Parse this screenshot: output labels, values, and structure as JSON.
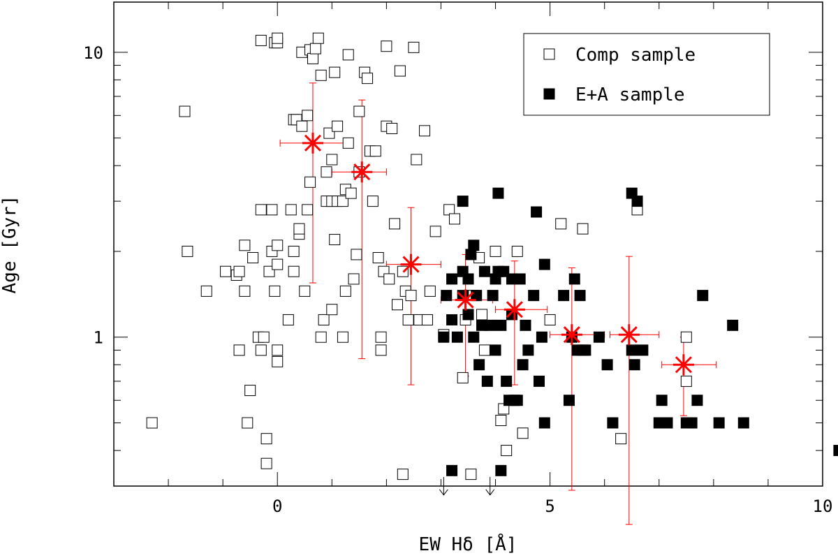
{
  "chart_data": {
    "type": "scatter",
    "xlabel": "EW Hδ [Å]",
    "ylabel": "Age [Gyr]",
    "xlim": [
      -3,
      10
    ],
    "ylim": [
      0.3,
      15
    ],
    "y_scale": "log",
    "x_ticks": [
      0,
      5,
      10
    ],
    "x_tick_labels": [
      "0",
      "5",
      "10"
    ],
    "y_ticks": [
      1,
      10
    ],
    "y_tick_labels": [
      "1",
      "10"
    ],
    "grid": false,
    "legend_position": "top-right",
    "series": [
      {
        "name": "Comp sample",
        "marker": "open-square",
        "color": "#000000",
        "points": [
          [
            -2.3,
            0.5
          ],
          [
            -1.7,
            6.2
          ],
          [
            -1.65,
            2.0
          ],
          [
            -1.3,
            1.45
          ],
          [
            -0.95,
            1.7
          ],
          [
            -0.75,
            1.65
          ],
          [
            -0.7,
            1.7
          ],
          [
            -0.7,
            0.9
          ],
          [
            -0.6,
            2.1
          ],
          [
            -0.6,
            1.45
          ],
          [
            -0.55,
            0.5
          ],
          [
            -0.5,
            0.65
          ],
          [
            -0.45,
            1.9
          ],
          [
            -0.35,
            1.0
          ],
          [
            -0.3,
            0.9
          ],
          [
            -0.3,
            2.8
          ],
          [
            -0.3,
            11.0
          ],
          [
            -0.25,
            1.0
          ],
          [
            -0.2,
            0.44
          ],
          [
            -0.2,
            0.36
          ],
          [
            -0.15,
            1.7
          ],
          [
            -0.1,
            2.0
          ],
          [
            -0.1,
            2.8
          ],
          [
            -0.05,
            1.45
          ],
          [
            -0.05,
            10.8
          ],
          [
            0.0,
            1.8
          ],
          [
            0.0,
            2.1
          ],
          [
            0.0,
            10.8
          ],
          [
            0.0,
            11.2
          ],
          [
            0.0,
            0.9
          ],
          [
            0.0,
            0.82
          ],
          [
            0.2,
            1.15
          ],
          [
            0.25,
            2.8
          ],
          [
            0.3,
            1.7
          ],
          [
            0.3,
            2.0
          ],
          [
            0.3,
            5.8
          ],
          [
            0.35,
            5.8
          ],
          [
            0.4,
            2.3
          ],
          [
            0.4,
            2.4
          ],
          [
            0.45,
            5.5
          ],
          [
            0.45,
            10.0
          ],
          [
            0.5,
            1.45
          ],
          [
            0.55,
            2.8
          ],
          [
            0.55,
            6.0
          ],
          [
            0.6,
            3.5
          ],
          [
            0.6,
            10.2
          ],
          [
            0.65,
            9.5
          ],
          [
            0.7,
            10.3
          ],
          [
            0.75,
            11.2
          ],
          [
            0.8,
            8.3
          ],
          [
            0.8,
            1.0
          ],
          [
            0.85,
            1.15
          ],
          [
            0.9,
            3.0
          ],
          [
            0.9,
            3.8
          ],
          [
            0.95,
            5.2
          ],
          [
            1.0,
            3.0
          ],
          [
            1.0,
            4.2
          ],
          [
            1.0,
            1.25
          ],
          [
            1.05,
            2.2
          ],
          [
            1.05,
            8.5
          ],
          [
            1.1,
            5.5
          ],
          [
            1.1,
            3.0
          ],
          [
            1.2,
            3.0
          ],
          [
            1.2,
            1.0
          ],
          [
            1.25,
            1.45
          ],
          [
            1.25,
            3.3
          ],
          [
            1.3,
            4.8
          ],
          [
            1.3,
            9.8
          ],
          [
            1.35,
            3.2
          ],
          [
            1.4,
            1.6
          ],
          [
            1.45,
            1.95
          ],
          [
            1.5,
            6.2
          ],
          [
            1.5,
            3.8
          ],
          [
            1.6,
            8.5
          ],
          [
            1.65,
            8.1
          ],
          [
            1.7,
            4.5
          ],
          [
            1.75,
            3.0
          ],
          [
            1.8,
            4.5
          ],
          [
            1.85,
            1.9
          ],
          [
            1.9,
            1.0
          ],
          [
            1.9,
            0.9
          ],
          [
            1.95,
            1.7
          ],
          [
            2.0,
            5.5
          ],
          [
            2.0,
            10.5
          ],
          [
            2.05,
            1.6
          ],
          [
            2.1,
            5.4
          ],
          [
            2.15,
            2.5
          ],
          [
            2.2,
            1.3
          ],
          [
            2.25,
            8.6
          ],
          [
            2.3,
            1.7
          ],
          [
            2.3,
            0.33
          ],
          [
            2.35,
            1.45
          ],
          [
            2.4,
            1.15
          ],
          [
            2.45,
            1.4
          ],
          [
            2.5,
            10.4
          ],
          [
            2.55,
            4.2
          ],
          [
            2.6,
            1.15
          ],
          [
            2.7,
            5.3
          ],
          [
            2.75,
            1.15
          ],
          [
            2.8,
            1.45
          ],
          [
            2.9,
            2.35
          ],
          [
            3.05,
            1.02
          ],
          [
            3.15,
            2.8
          ],
          [
            3.25,
            2.6
          ],
          [
            3.4,
            0.72
          ],
          [
            3.45,
            1.15
          ],
          [
            3.55,
            0.33
          ],
          [
            3.6,
            1.4
          ],
          [
            3.7,
            1.9
          ],
          [
            3.75,
            1.2
          ],
          [
            3.8,
            0.9
          ],
          [
            4.0,
            2.0
          ],
          [
            4.1,
            0.51
          ],
          [
            4.15,
            0.56
          ],
          [
            4.2,
            0.4
          ],
          [
            4.4,
            2.0
          ],
          [
            4.5,
            0.46
          ],
          [
            5.0,
            1.15
          ],
          [
            5.2,
            2.5
          ],
          [
            5.6,
            2.4
          ],
          [
            5.6,
            0.9
          ],
          [
            6.3,
            0.44
          ],
          [
            6.6,
            2.8
          ],
          [
            7.5,
            1.0
          ],
          [
            7.5,
            0.7
          ]
        ]
      },
      {
        "name": "E+A sample",
        "marker": "filled-square",
        "color": "#000000",
        "points": [
          [
            3.05,
            1.0
          ],
          [
            3.1,
            1.4
          ],
          [
            3.2,
            1.15
          ],
          [
            3.2,
            1.6
          ],
          [
            3.2,
            0.34
          ],
          [
            3.3,
            1.0
          ],
          [
            3.4,
            1.7
          ],
          [
            3.4,
            3.0
          ],
          [
            3.4,
            1.4
          ],
          [
            3.5,
            1.6
          ],
          [
            3.5,
            1.2
          ],
          [
            3.55,
            1.95
          ],
          [
            3.6,
            2.1
          ],
          [
            3.6,
            1.0
          ],
          [
            3.65,
            1.4
          ],
          [
            3.7,
            0.8
          ],
          [
            3.75,
            1.1
          ],
          [
            3.8,
            1.7
          ],
          [
            3.85,
            0.7
          ],
          [
            3.9,
            1.1
          ],
          [
            3.95,
            1.4
          ],
          [
            4.0,
            1.6
          ],
          [
            4.0,
            0.9
          ],
          [
            4.05,
            3.2
          ],
          [
            4.05,
            1.7
          ],
          [
            4.1,
            1.1
          ],
          [
            4.1,
            0.34
          ],
          [
            4.15,
            1.7
          ],
          [
            4.2,
            0.7
          ],
          [
            4.25,
            0.6
          ],
          [
            4.3,
            1.2
          ],
          [
            4.3,
            1.6
          ],
          [
            4.35,
            0.6
          ],
          [
            4.4,
            0.6
          ],
          [
            4.45,
            1.6
          ],
          [
            4.5,
            0.8
          ],
          [
            4.55,
            1.1
          ],
          [
            4.6,
            0.9
          ],
          [
            4.7,
            1.4
          ],
          [
            4.75,
            2.75
          ],
          [
            4.8,
            0.7
          ],
          [
            4.85,
            1.0
          ],
          [
            4.9,
            1.8
          ],
          [
            4.9,
            0.5
          ],
          [
            5.25,
            1.4
          ],
          [
            5.35,
            0.6
          ],
          [
            5.4,
            1.0
          ],
          [
            5.45,
            1.6
          ],
          [
            5.5,
            0.9
          ],
          [
            5.55,
            1.4
          ],
          [
            5.65,
            0.9
          ],
          [
            5.9,
            1.0
          ],
          [
            6.05,
            0.8
          ],
          [
            6.15,
            0.5
          ],
          [
            6.5,
            3.2
          ],
          [
            6.5,
            0.9
          ],
          [
            6.55,
            0.8
          ],
          [
            6.6,
            3.0
          ],
          [
            6.7,
            0.9
          ],
          [
            7.0,
            0.5
          ],
          [
            7.05,
            0.6
          ],
          [
            7.15,
            0.5
          ],
          [
            7.5,
            0.5
          ],
          [
            7.6,
            0.5
          ],
          [
            7.7,
            0.6
          ],
          [
            7.8,
            1.4
          ],
          [
            8.1,
            0.5
          ],
          [
            8.35,
            1.1
          ],
          [
            8.55,
            0.5
          ],
          [
            10.3,
            0.4
          ]
        ]
      },
      {
        "name": "",
        "marker": "asterisk",
        "color": "#ff0000",
        "points": [
          {
            "x": 0.65,
            "y": 4.8,
            "xerr": [
              0.6,
              0.6
            ],
            "yerr": [
              1.55,
              7.8
            ]
          },
          {
            "x": 1.55,
            "y": 3.8,
            "xerr": [
              0.55,
              0.45
            ],
            "yerr": [
              0.84,
              6.8
            ]
          },
          {
            "x": 2.45,
            "y": 1.8,
            "xerr": [
              0.45,
              0.55
            ],
            "yerr": [
              0.68,
              2.85
            ]
          },
          {
            "x": 3.45,
            "y": 1.35,
            "xerr": [
              0.45,
              0.5
            ],
            "yerr": [
              0.73,
              1.95
            ]
          },
          {
            "x": 4.35,
            "y": 1.25,
            "xerr": [
              0.35,
              0.6
            ],
            "yerr": [
              0.68,
              1.85
            ]
          },
          {
            "x": 5.4,
            "y": 1.02,
            "xerr": [
              0.4,
              0.6
            ],
            "yerr": [
              0.29,
              1.75
            ]
          },
          {
            "x": 6.45,
            "y": 1.02,
            "xerr": [
              0.35,
              0.55
            ],
            "yerr": [
              0.22,
              1.92
            ]
          },
          {
            "x": 7.45,
            "y": 0.8,
            "xerr": [
              0.4,
              0.6
            ],
            "yerr": [
              0.53,
              1.0
            ]
          }
        ]
      }
    ],
    "annotations": [
      {
        "type": "upper-limit-arrow",
        "x": 3.05,
        "y": 0.34
      },
      {
        "type": "upper-limit-arrow",
        "x": 3.9,
        "y": 0.34
      }
    ]
  }
}
